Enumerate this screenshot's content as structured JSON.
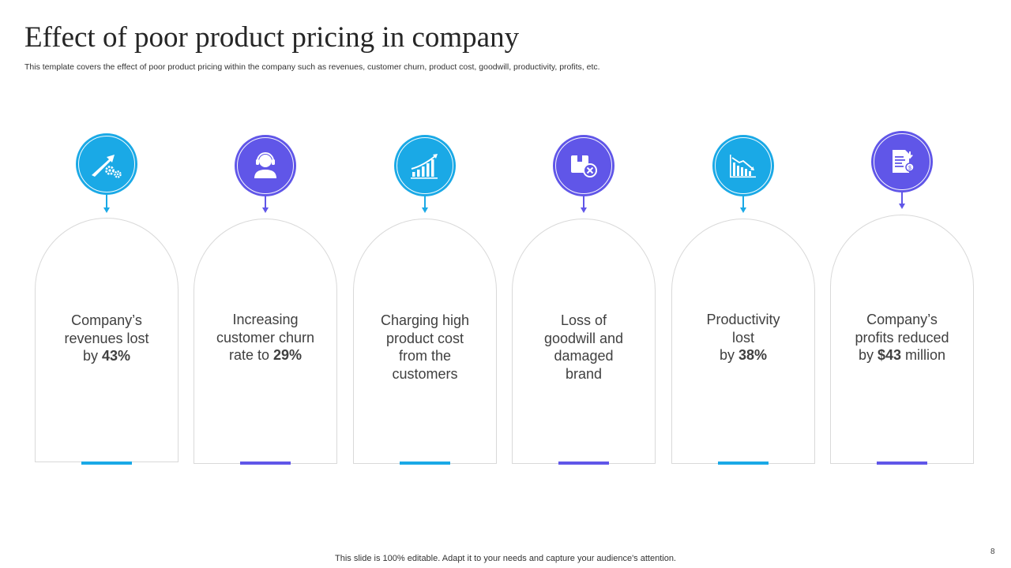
{
  "slide": {
    "title": "Effect of poor product pricing in company",
    "subtitle": "This template covers the effect of poor product pricing within the company such as revenues, customer churn, product cost, goodwill, productivity, profits, etc.",
    "footer": "This slide is 100% editable. Adapt it to your needs and capture your audience's attention.",
    "page_number": "8"
  },
  "colors": {
    "cyan": "#1aa9e6",
    "purple": "#6056e8",
    "border": "#d9d9d9",
    "text": "#404040"
  },
  "cards": [
    {
      "icon": "growth-arrow-gears-icon",
      "color": "cyan",
      "line1": "Company’s",
      "line2": "revenues lost",
      "line3_pre": "by ",
      "line3_bold": "43%",
      "line3_post": "",
      "line4": ""
    },
    {
      "icon": "customer-headset-icon",
      "color": "purple",
      "line1": "Increasing",
      "line2": "customer churn",
      "line3_pre": "rate to ",
      "line3_bold": "29%",
      "line3_post": "",
      "line4": ""
    },
    {
      "icon": "rising-bar-chart-icon",
      "color": "cyan",
      "line1": "Charging high",
      "line2": "product cost",
      "line3_pre": "from the",
      "line3_bold": "",
      "line3_post": "",
      "line4": "customers"
    },
    {
      "icon": "damaged-box-icon",
      "color": "purple",
      "line1": "Loss of",
      "line2": "goodwill and",
      "line3_pre": "damaged",
      "line3_bold": "",
      "line3_post": "",
      "line4": "brand"
    },
    {
      "icon": "declining-chart-icon",
      "color": "cyan",
      "line1": "Productivity",
      "line2": "lost",
      "line3_pre": "by ",
      "line3_bold": "38%",
      "line3_post": "",
      "line4": ""
    },
    {
      "icon": "profit-report-icon",
      "color": "purple",
      "line1": "Company’s",
      "line2": "profits reduced",
      "line3_pre": "by ",
      "line3_bold": "$43",
      "line3_post": " million",
      "line4": ""
    }
  ]
}
